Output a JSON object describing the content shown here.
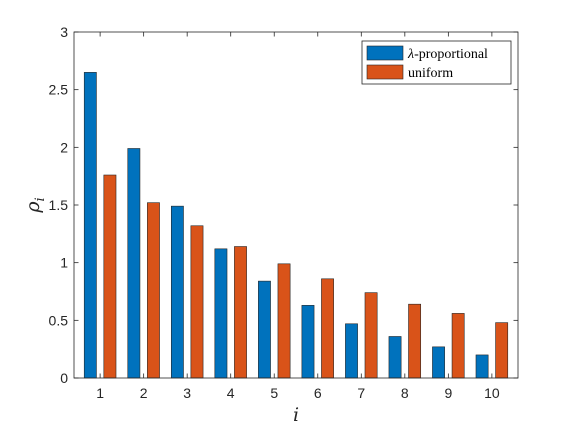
{
  "chart_data": {
    "type": "bar",
    "title": "",
    "xlabel": "i",
    "ylabel": {
      "base": "ρ",
      "sub": "i"
    },
    "categories": [
      "1",
      "2",
      "3",
      "4",
      "5",
      "6",
      "7",
      "8",
      "9",
      "10"
    ],
    "ylim": [
      0,
      3
    ],
    "yticks": [
      0,
      0.5,
      1,
      1.5,
      2,
      2.5,
      3
    ],
    "ytick_labels": [
      "0",
      "0.5",
      "1",
      "1.5",
      "2",
      "2.5",
      "3"
    ],
    "grid": false,
    "legend_position": "top-right",
    "series": [
      {
        "name": "λ-proportional",
        "name_parts": {
          "symbol": "λ",
          "rest": "-proportional"
        },
        "color": "#0072BD",
        "values": [
          2.65,
          1.99,
          1.49,
          1.12,
          0.84,
          0.63,
          0.47,
          0.36,
          0.27,
          0.2
        ]
      },
      {
        "name": "uniform",
        "color": "#D95319",
        "values": [
          1.76,
          1.52,
          1.32,
          1.14,
          0.99,
          0.86,
          0.74,
          0.64,
          0.56,
          0.48
        ]
      }
    ]
  }
}
